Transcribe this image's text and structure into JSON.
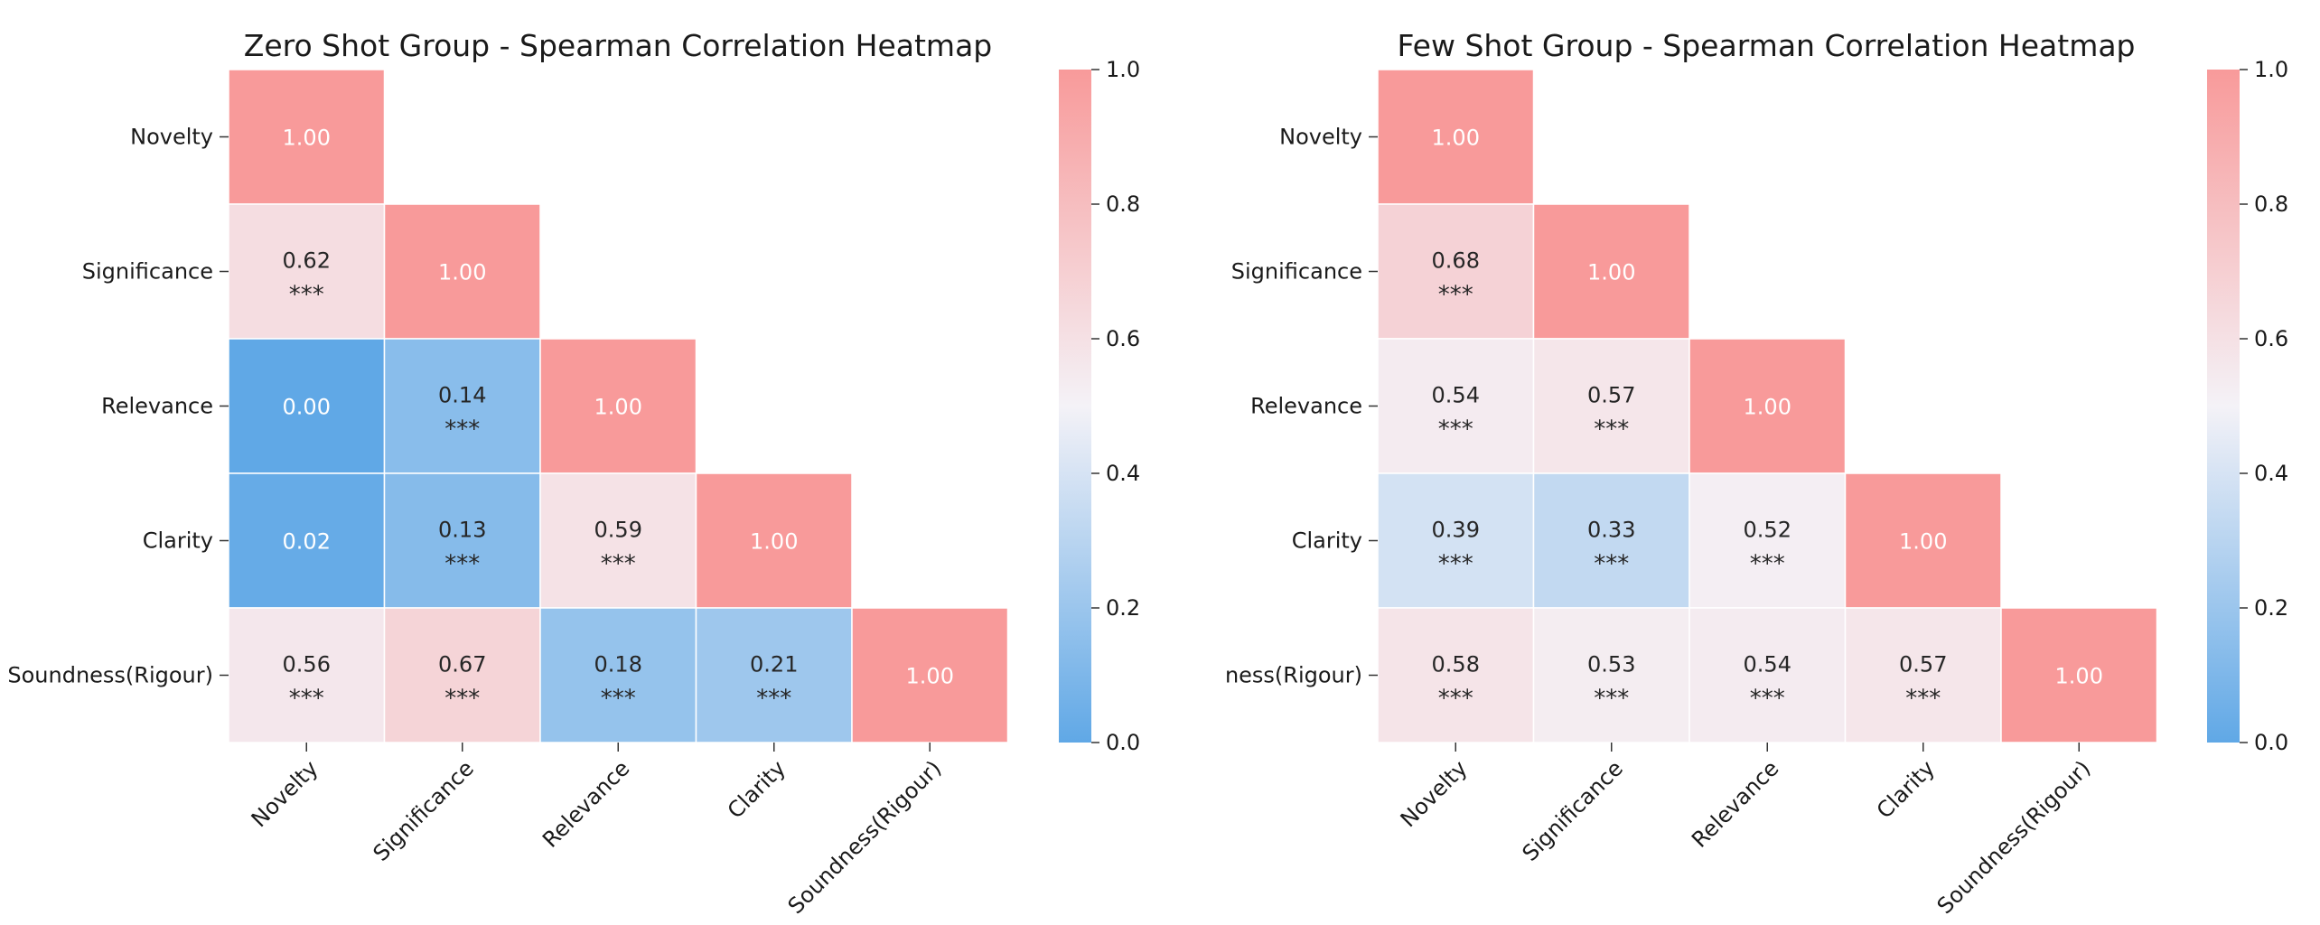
{
  "chart_data": [
    {
      "type": "heatmap",
      "title": "Zero Shot Group - Spearman Correlation Heatmap",
      "row_labels": [
        "Novelty",
        "Significance",
        "Relevance",
        "Clarity",
        "Soundness(Rigour)"
      ],
      "col_labels": [
        "Novelty",
        "Significance",
        "Relevance",
        "Clarity",
        "Soundness(Rigour)"
      ],
      "values": [
        [
          1.0,
          null,
          null,
          null,
          null
        ],
        [
          0.62,
          1.0,
          null,
          null,
          null
        ],
        [
          0.0,
          0.14,
          1.0,
          null,
          null
        ],
        [
          0.02,
          0.13,
          0.59,
          1.0,
          null
        ],
        [
          0.56,
          0.67,
          0.18,
          0.21,
          1.0
        ]
      ],
      "cell_text": [
        [
          "1.00",
          "",
          "",
          "",
          ""
        ],
        [
          "0.62\n***",
          "1.00",
          "",
          "",
          ""
        ],
        [
          "0.00",
          "0.14\n***",
          "1.00",
          "",
          ""
        ],
        [
          "0.02",
          "0.13\n***",
          "0.59\n***",
          "1.00",
          ""
        ],
        [
          "0.56\n***",
          "0.67\n***",
          "0.18\n***",
          "0.21\n***",
          "1.00"
        ]
      ],
      "colorbar": {
        "min": 0.0,
        "max": 1.0,
        "ticks": [
          "0.0",
          "0.2",
          "0.4",
          "0.6",
          "0.8",
          "1.0"
        ]
      }
    },
    {
      "type": "heatmap",
      "title": "Few Shot Group - Spearman Correlation Heatmap",
      "row_labels": [
        "Novelty",
        "Significance",
        "Relevance",
        "Clarity",
        "ness(Rigour)"
      ],
      "col_labels": [
        "Novelty",
        "Significance",
        "Relevance",
        "Clarity",
        "Soundness(Rigour)"
      ],
      "values": [
        [
          1.0,
          null,
          null,
          null,
          null
        ],
        [
          0.68,
          1.0,
          null,
          null,
          null
        ],
        [
          0.54,
          0.57,
          1.0,
          null,
          null
        ],
        [
          0.39,
          0.33,
          0.52,
          1.0,
          null
        ],
        [
          0.58,
          0.53,
          0.54,
          0.57,
          1.0
        ]
      ],
      "cell_text": [
        [
          "1.00",
          "",
          "",
          "",
          ""
        ],
        [
          "0.68\n***",
          "1.00",
          "",
          "",
          ""
        ],
        [
          "0.54\n***",
          "0.57\n***",
          "1.00",
          "",
          ""
        ],
        [
          "0.39\n***",
          "0.33\n***",
          "0.52\n***",
          "1.00",
          ""
        ],
        [
          "0.58\n***",
          "0.53\n***",
          "0.54\n***",
          "0.57\n***",
          "1.00"
        ]
      ],
      "colorbar": {
        "min": 0.0,
        "max": 1.0,
        "ticks": [
          "0.0",
          "0.2",
          "0.4",
          "0.6",
          "0.8",
          "1.0"
        ]
      }
    }
  ],
  "colors": {
    "low": "#60a8e6",
    "mid": "#f4f2f7",
    "high": "#f89a9a",
    "text_dark": "#262626",
    "text_light": "#ffffff",
    "grid": "#ffffff"
  }
}
